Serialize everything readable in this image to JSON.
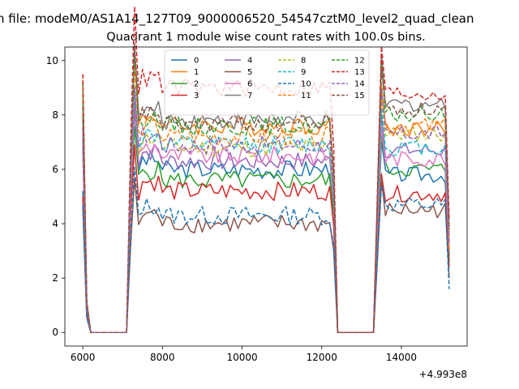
{
  "figure": {
    "suptitle": "n file: modeM0/AS1A14_127T09_9000006520_54547cztM0_level2_quad_clean"
  },
  "chart_data": {
    "type": "line",
    "title": "Quadrant 1 module wise count rates with 100.0s bins.",
    "xlabel": "",
    "ylabel": "",
    "x_offset_label": "+4.993e8",
    "xlim": [
      5550,
      15650
    ],
    "ylim": [
      -0.5,
      10.5
    ],
    "xticks": [
      6000,
      8000,
      10000,
      12000,
      14000
    ],
    "yticks": [
      0,
      2,
      4,
      6,
      8,
      10
    ],
    "legend_position": "upper-center",
    "legend_columns": 4,
    "time_segments": [
      {
        "start": 7200,
        "end": 12300
      },
      {
        "start": 13400,
        "end": 15100
      }
    ],
    "first_bin_time": 6000,
    "bin_width": 100,
    "series": [
      {
        "name": "0",
        "color": "#1f77b4",
        "dash": "solid",
        "start": 5.2,
        "seg1": 6.0,
        "seg2": 5.8,
        "end": 2.8
      },
      {
        "name": "1",
        "color": "#ff7f0e",
        "dash": "solid",
        "start": 9.3,
        "seg1": 7.6,
        "seg2": 7.5,
        "end": 3.5
      },
      {
        "name": "2",
        "color": "#2ca02c",
        "dash": "solid",
        "start": 7.0,
        "seg1": 5.6,
        "seg2": 6.0,
        "end": 2.6
      },
      {
        "name": "3",
        "color": "#d62728",
        "dash": "solid",
        "start": 5.0,
        "seg1": 5.2,
        "seg2": 5.1,
        "end": 2.4
      },
      {
        "name": "4",
        "color": "#9467bd",
        "dash": "solid",
        "start": 6.8,
        "seg1": 6.3,
        "seg2": 6.7,
        "end": 3.0
      },
      {
        "name": "5",
        "color": "#8c564b",
        "dash": "solid",
        "start": 4.6,
        "seg1": 4.0,
        "seg2": 4.5,
        "end": 2.0
      },
      {
        "name": "6",
        "color": "#e377c2",
        "dash": "solid",
        "start": 7.2,
        "seg1": 6.5,
        "seg2": 6.4,
        "end": 3.1
      },
      {
        "name": "7",
        "color": "#7f7f7f",
        "dash": "solid",
        "start": 7.9,
        "seg1": 7.8,
        "seg2": 8.4,
        "end": 3.6
      },
      {
        "name": "8",
        "color": "#bcbd22",
        "dash": "dashed",
        "start": 8.6,
        "seg1": 6.8,
        "seg2": 7.3,
        "end": 3.4
      },
      {
        "name": "9",
        "color": "#17becf",
        "dash": "dashed",
        "start": 8.5,
        "seg1": 6.9,
        "seg2": 6.8,
        "end": 3.2
      },
      {
        "name": "10",
        "color": "#1f77b4",
        "dash": "dashed",
        "start": 4.7,
        "seg1": 4.3,
        "seg2": 4.7,
        "end": 1.6
      },
      {
        "name": "11",
        "color": "#ff7f0e",
        "dash": "dashed",
        "start": 8.8,
        "seg1": 7.2,
        "seg2": 7.6,
        "end": 3.0
      },
      {
        "name": "12",
        "color": "#2ca02c",
        "dash": "dashed",
        "start": 9.2,
        "seg1": 7.6,
        "seg2": 8.0,
        "end": 3.9
      },
      {
        "name": "13",
        "color": "#d62728",
        "dash": "dashed",
        "start": 9.5,
        "seg1": 9.0,
        "seg2": 8.8,
        "end": 4.2
      },
      {
        "name": "14",
        "color": "#9467bd",
        "dash": "dashed",
        "start": 7.5,
        "seg1": 6.9,
        "seg2": 7.3,
        "end": 3.3
      },
      {
        "name": "15",
        "color": "#8c564b",
        "dash": "dashed",
        "start": 8.3,
        "seg1": 7.7,
        "seg2": 8.2,
        "end": 3.8
      }
    ]
  }
}
